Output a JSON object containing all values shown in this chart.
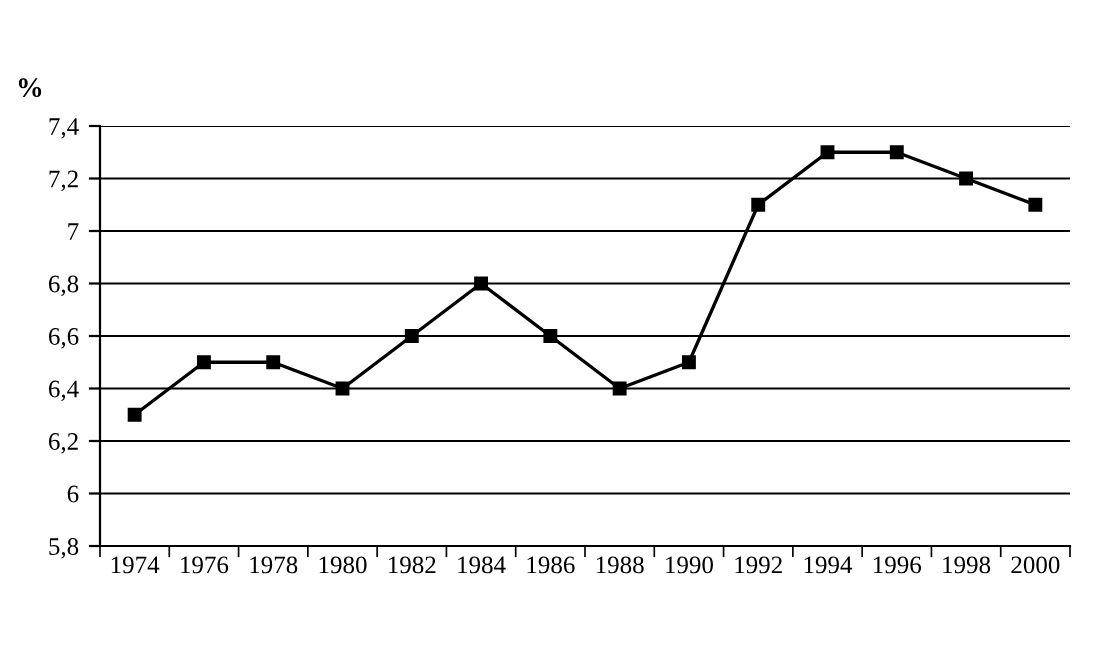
{
  "chart_data": {
    "type": "line",
    "ylabel": "%",
    "categories": [
      "1974",
      "1976",
      "1978",
      "1980",
      "1982",
      "1984",
      "1986",
      "1988",
      "1990",
      "1992",
      "1994",
      "1996",
      "1998",
      "2000"
    ],
    "series": [
      {
        "color": "#000000",
        "values": [
          6.3,
          6.5,
          6.5,
          6.4,
          6.6,
          6.8,
          6.6,
          6.4,
          6.5,
          7.1,
          7.3,
          7.3,
          7.2,
          7.1
        ]
      }
    ],
    "ylim": [
      5.8,
      7.4
    ],
    "yticks": [
      {
        "value": 5.8,
        "label": "5,8"
      },
      {
        "value": 6,
        "label": "6"
      },
      {
        "value": 6.2,
        "label": "6,2"
      },
      {
        "value": 6.4,
        "label": "6,4"
      },
      {
        "value": 6.6,
        "label": "6,6"
      },
      {
        "value": 6.8,
        "label": "6,8"
      },
      {
        "value": 7,
        "label": "7"
      },
      {
        "value": 7.2,
        "label": "7,2"
      },
      {
        "value": 7.4,
        "label": "7,4"
      }
    ],
    "grid": "y",
    "marker": "square",
    "line_style": "solid",
    "legend": false
  }
}
